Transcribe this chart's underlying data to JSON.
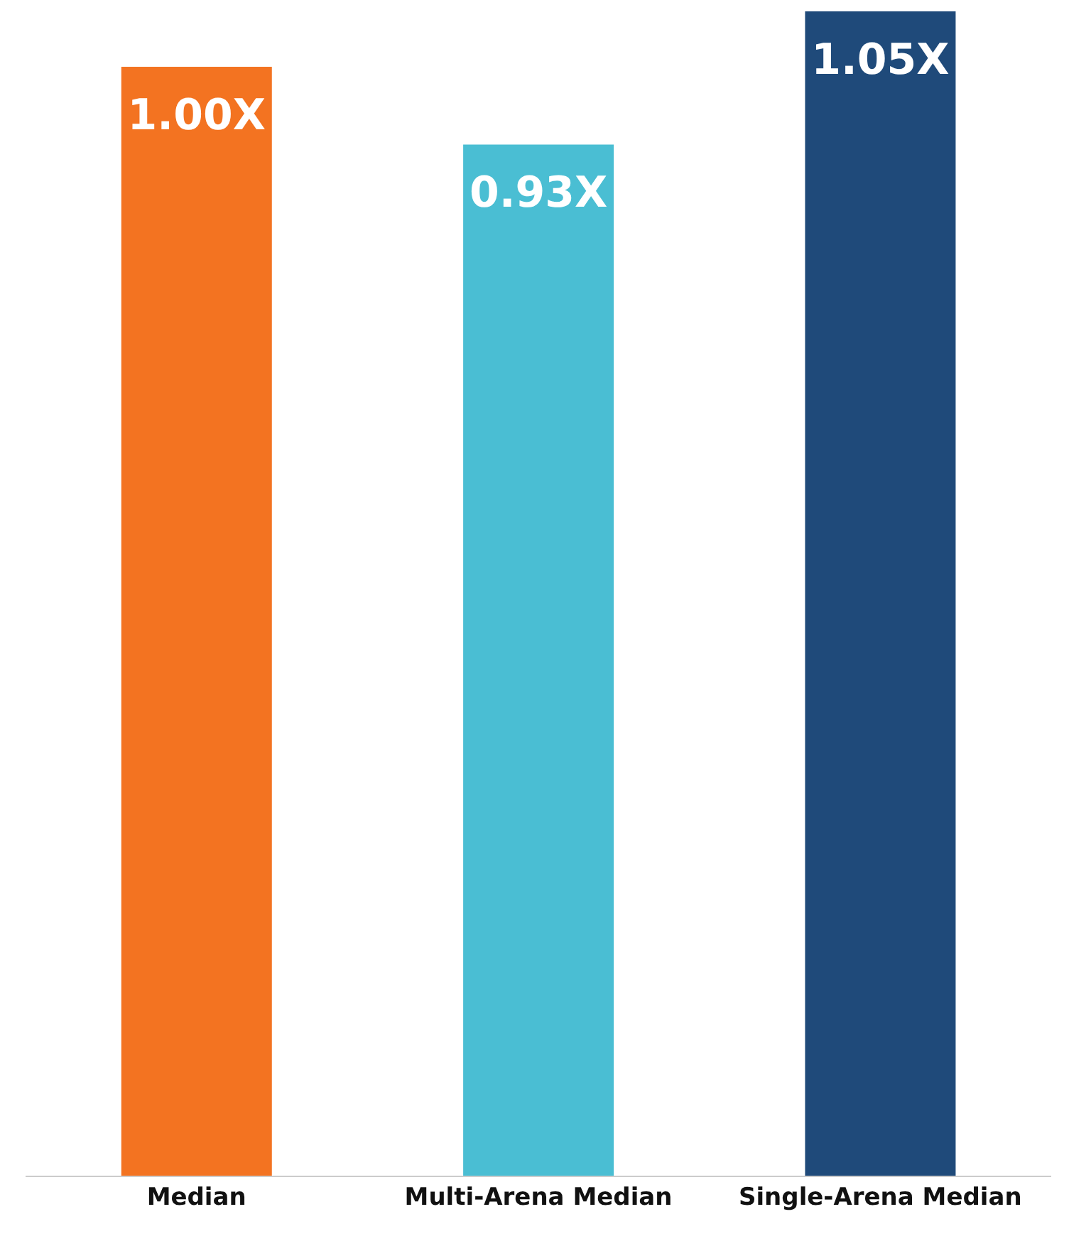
{
  "chart_data": {
    "type": "bar",
    "categories": [
      "Median",
      "Multi-Arena Median",
      "Single-Arena Median"
    ],
    "values": [
      1.0,
      0.93,
      1.05
    ],
    "colors": [
      "#f37321",
      "#4abed3",
      "#1f4a7a"
    ],
    "value_labels": [
      "1.00X",
      "0.93X",
      "1.05X"
    ],
    "tick_labels": "x",
    "grid": false,
    "legend": false
  }
}
